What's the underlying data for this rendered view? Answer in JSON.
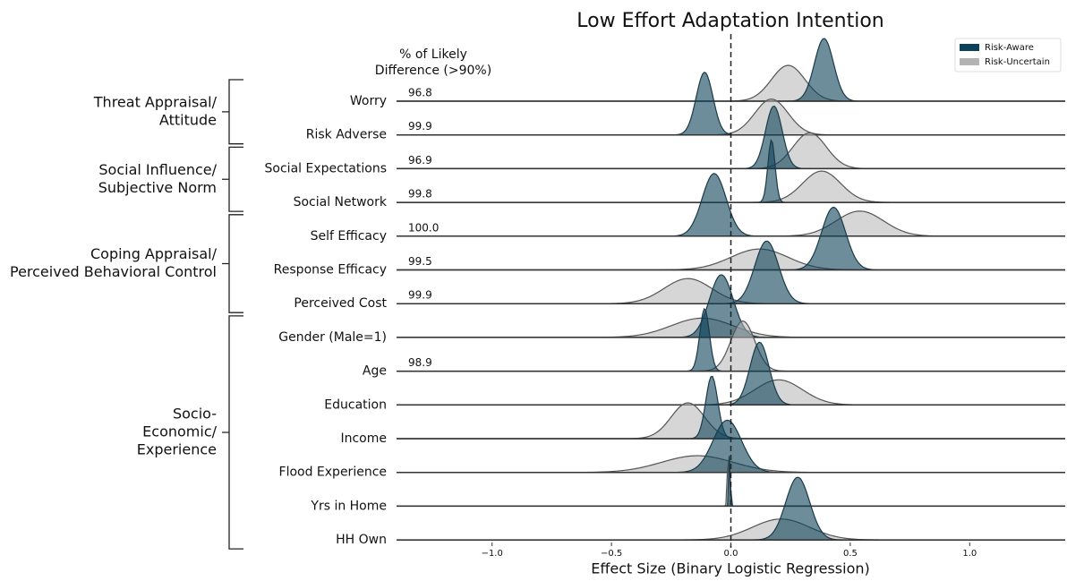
{
  "chart_data": {
    "type": "ridgeline",
    "title": "Low Effort Adaptation Intention",
    "xlabel": "Effect Size (Binary Logistic Regression)",
    "annotation_header": [
      "% of Likely",
      "Difference (>90%)"
    ],
    "categories": [
      "Worry",
      "Risk Adverse",
      "Social Expectations",
      "Social Network",
      "Self Efficacy",
      "Response Efficacy",
      "Perceived Cost",
      "Gender (Male=1)",
      "Age",
      "Education",
      "Income",
      "Flood Experience",
      "Yrs in Home",
      "HH Own"
    ],
    "likely_difference": {
      "values": [
        96.8,
        99.9,
        96.9,
        99.8,
        100,
        99.5,
        99.9,
        null,
        98.9,
        null,
        null,
        null,
        null,
        null
      ],
      "value_labels": [
        "96.8",
        "99.9",
        "96.9",
        "99.8",
        "100.0",
        "99.5",
        "99.9",
        null,
        "98.9",
        null,
        null,
        null,
        null,
        null
      ]
    },
    "groups": [
      {
        "label": [
          "Threat Appraisal/",
          "Attitude"
        ],
        "first": 0,
        "last": 1
      },
      {
        "label": [
          "Social Influence/",
          "Subjective Norm"
        ],
        "first": 2,
        "last": 3
      },
      {
        "label": [
          "Coping Appraisal/",
          "Perceived Behavioral Control"
        ],
        "first": 4,
        "last": 6
      },
      {
        "label": [
          "Socio-",
          "Economic/",
          "Experience"
        ],
        "first": 7,
        "last": 13
      }
    ],
    "series": [
      {
        "name": "Risk-Aware",
        "color": "#0d4159",
        "means": [
          0.39,
          -0.11,
          0.18,
          0.17,
          -0.07,
          0.43,
          0.15,
          -0.04,
          -0.11,
          0.12,
          -0.08,
          -0.015,
          -0.005,
          0.28
        ],
        "sds": [
          0.04,
          0.035,
          0.035,
          0.015,
          0.05,
          0.05,
          0.05,
          0.05,
          0.02,
          0.04,
          0.025,
          0.06,
          0.003,
          0.05
        ]
      },
      {
        "name": "Risk-Uncertain",
        "color": "#b4b4b4",
        "means": [
          0.24,
          0.17,
          0.33,
          0.38,
          0.54,
          0.12,
          -0.18,
          -0.12,
          0.05,
          0.2,
          -0.18,
          -0.14,
          -0.01,
          0.21
        ],
        "sds": [
          0.07,
          0.07,
          0.07,
          0.08,
          0.1,
          0.12,
          0.1,
          0.13,
          0.05,
          0.1,
          0.07,
          0.15,
          0.004,
          0.12
        ]
      }
    ],
    "xlim": [
      -1.4,
      1.4
    ],
    "xticks": [
      {
        "value": -1,
        "label": "−1.0"
      },
      {
        "value": -0.5,
        "label": "−0.5"
      },
      {
        "value": 0,
        "label": "0.0"
      },
      {
        "value": 0.5,
        "label": "0.5"
      },
      {
        "value": 1,
        "label": "1.0"
      }
    ],
    "reference_line": 0,
    "legend": "upper right"
  }
}
